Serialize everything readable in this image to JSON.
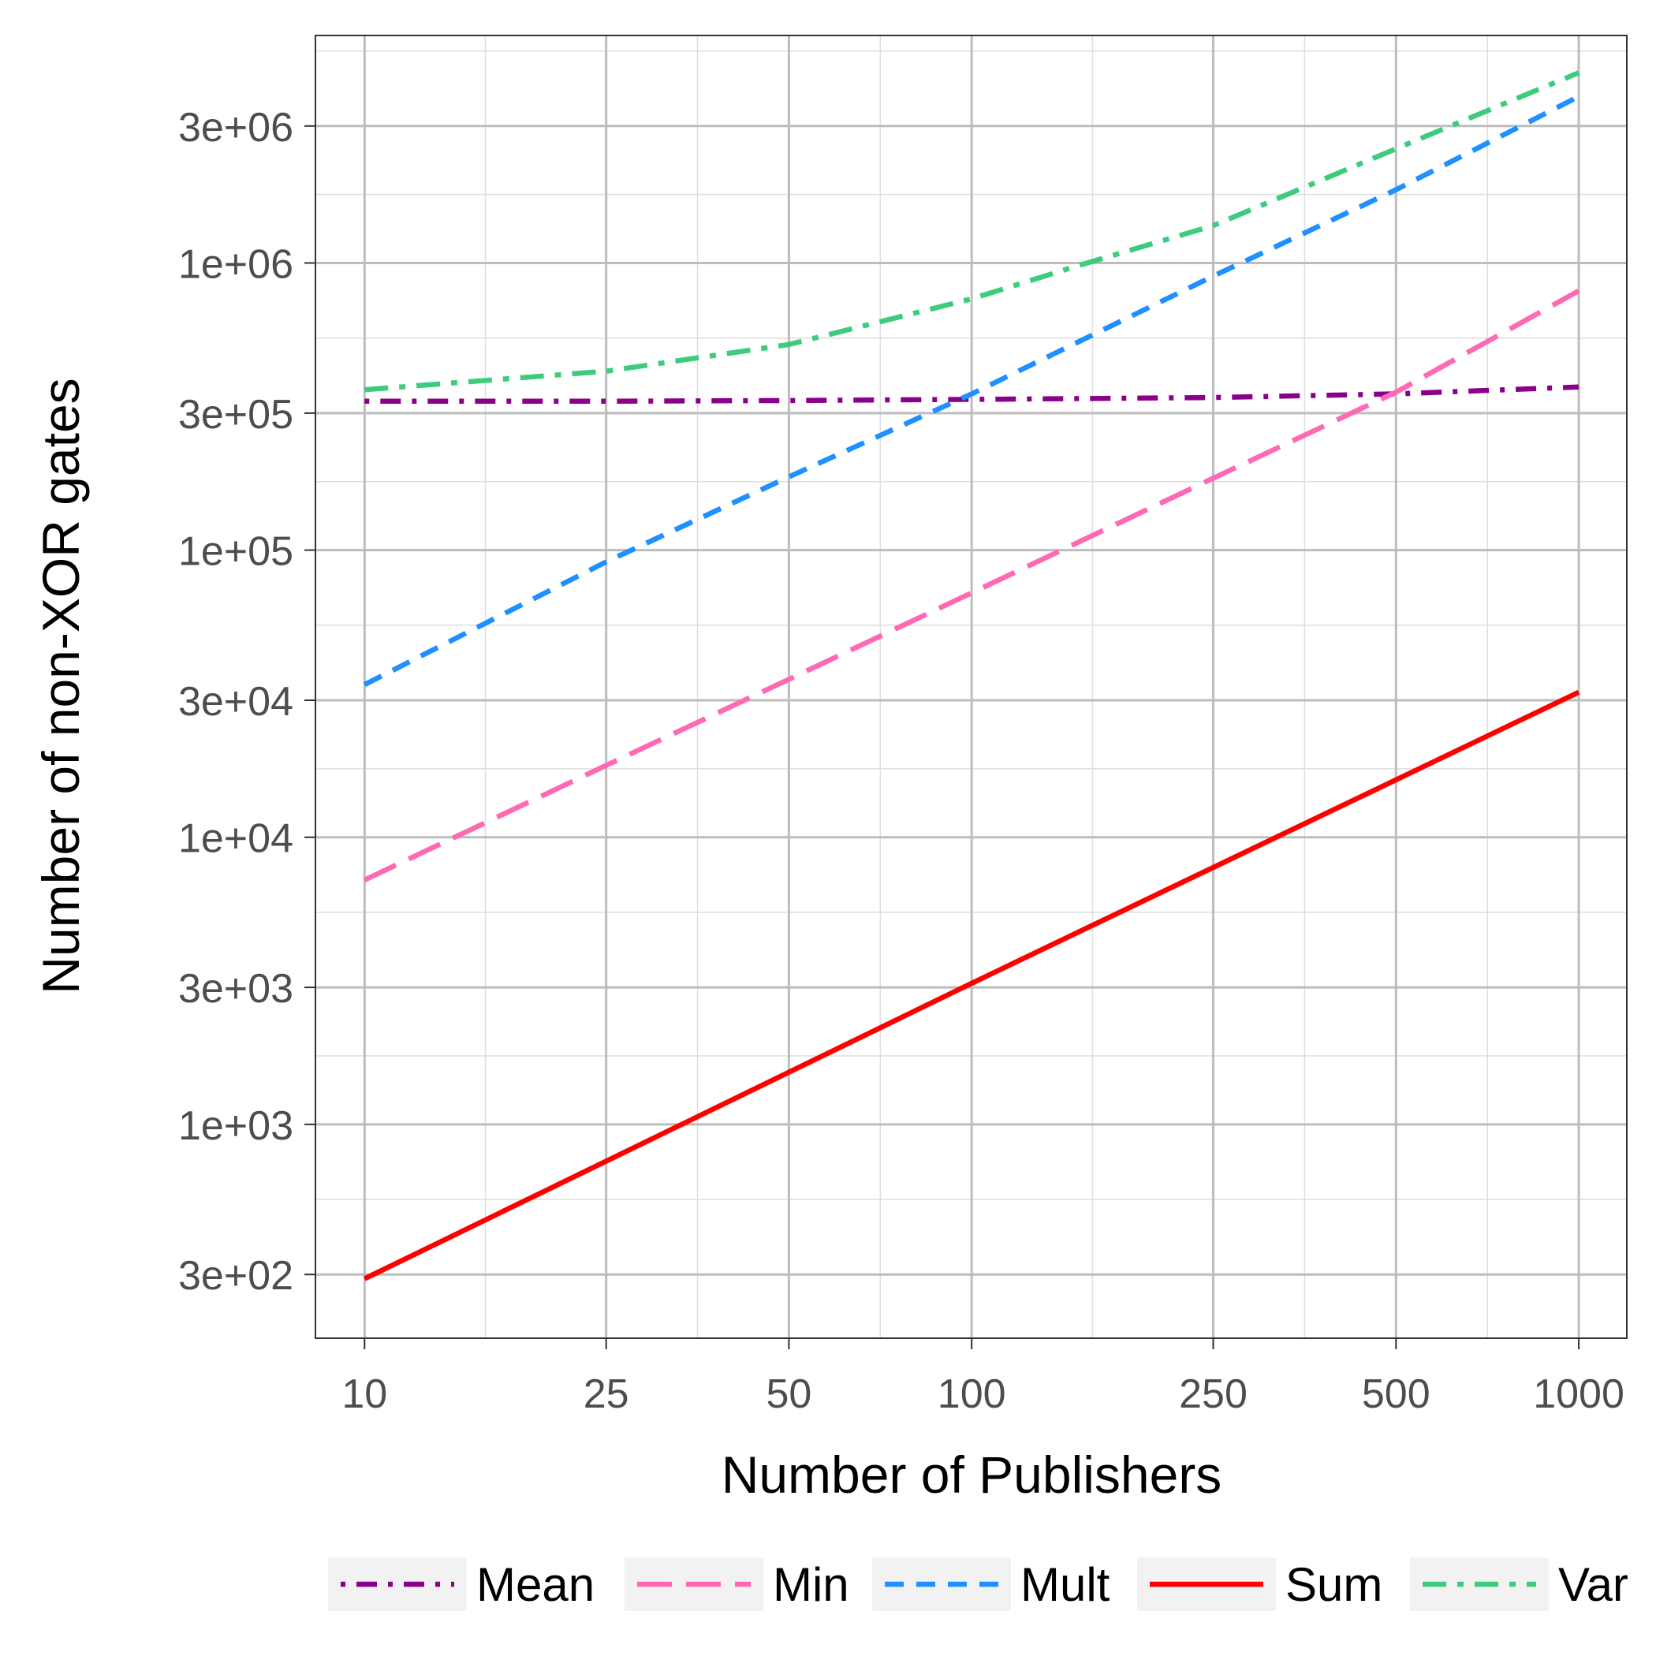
{
  "chart_data": {
    "type": "line",
    "title": "",
    "xlabel": "Number of Publishers",
    "ylabel": "Number of non-XOR gates",
    "x_scale": "log",
    "y_scale": "log",
    "xlim": [
      8.3,
      1200
    ],
    "ylim": [
      180,
      6200000
    ],
    "x_ticks": [
      10,
      25,
      50,
      100,
      250,
      500,
      1000
    ],
    "x_tick_labels": [
      "10",
      "25",
      "50",
      "100",
      "250",
      "500",
      "1000"
    ],
    "y_ticks": [
      300,
      1000,
      3000,
      10000,
      30000,
      100000,
      300000,
      1000000,
      3000000
    ],
    "y_tick_labels": [
      "3e+02",
      "1e+03",
      "3e+03",
      "1e+04",
      "3e+04",
      "1e+05",
      "3e+05",
      "1e+06",
      "3e+06"
    ],
    "grid": true,
    "legend_position": "bottom",
    "series": [
      {
        "name": "Mean",
        "color": "#8B008B",
        "dash": "dotdash",
        "x": [
          10,
          25,
          50,
          100,
          250,
          500,
          1000
        ],
        "y": [
          330000,
          330000,
          332000,
          335000,
          340000,
          350000,
          370000
        ]
      },
      {
        "name": "Min",
        "color": "#FF69B4",
        "dash": "longdash",
        "x": [
          10,
          25,
          50,
          100,
          250,
          500,
          1000
        ],
        "y": [
          7100,
          17800,
          35500,
          71000,
          178000,
          355000,
          800000
        ]
      },
      {
        "name": "Mult",
        "color": "#1E90FF",
        "dash": "dashed",
        "x": [
          10,
          25,
          50,
          100,
          250,
          500,
          1000
        ],
        "y": [
          34000,
          91000,
          180000,
          350000,
          900000,
          1800000,
          3800000
        ]
      },
      {
        "name": "Sum",
        "color": "#FF0000",
        "dash": "solid",
        "x": [
          10,
          100,
          1000
        ],
        "y": [
          290,
          3100,
          32000
        ]
      },
      {
        "name": "Var",
        "color": "#3ECB7E",
        "dash": "twodash",
        "x": [
          10,
          25,
          50,
          100,
          150,
          250,
          500,
          1000
        ],
        "y": [
          362000,
          420000,
          520000,
          750000,
          980000,
          1350000,
          2500000,
          4600000
        ]
      }
    ]
  }
}
